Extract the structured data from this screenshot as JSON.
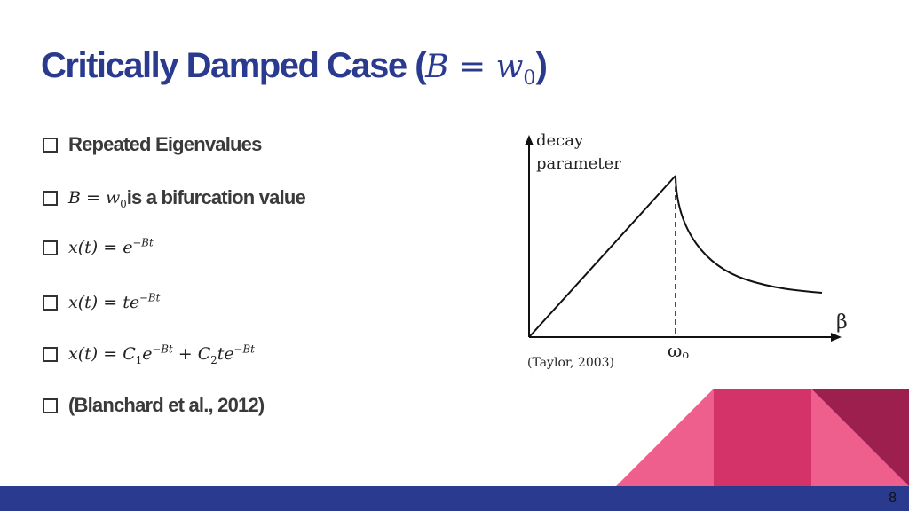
{
  "slide": {
    "title_text": "Critically Damped Case (",
    "title_math_var": "B",
    "title_math_eq": " = ",
    "title_math_w": "w",
    "title_math_sub": "0",
    "title_close": ")",
    "page_number": "8"
  },
  "bullets": [
    {
      "text": "Repeated Eigenvalues"
    },
    {
      "math_var": "B",
      "math_eq": " = ",
      "math_w": "w",
      "math_sub": "0",
      "text": " is a bifurcation value"
    },
    {
      "lhs": "x(t) = ",
      "base": "e",
      "sup": "−Bt"
    },
    {
      "lhs": "x(t) = ",
      "base": "te",
      "sup": "−Bt"
    },
    {
      "lhs": "x(t) = ",
      "c1": "C",
      "c1_sub": "1",
      "base1": "e",
      "sup1": "−Bt",
      "plus": " + ",
      "c2": "C",
      "c2_sub": "2",
      "base2": "te",
      "sup2": "−Bt"
    },
    {
      "text": "(Blanchard et al., 2012)"
    }
  ],
  "figure": {
    "y_label_line1": "decay",
    "y_label_line2": "parameter",
    "x_label": "β",
    "omega_label": "ω",
    "omega_sub": "o",
    "caption": "(Taylor, 2003)"
  },
  "colors": {
    "title": "#2a3a8f",
    "bar": "#2a3a8f",
    "pink_light": "#ef5f8e",
    "pink_mid": "#d4336a",
    "maroon": "#9c1f4d"
  }
}
